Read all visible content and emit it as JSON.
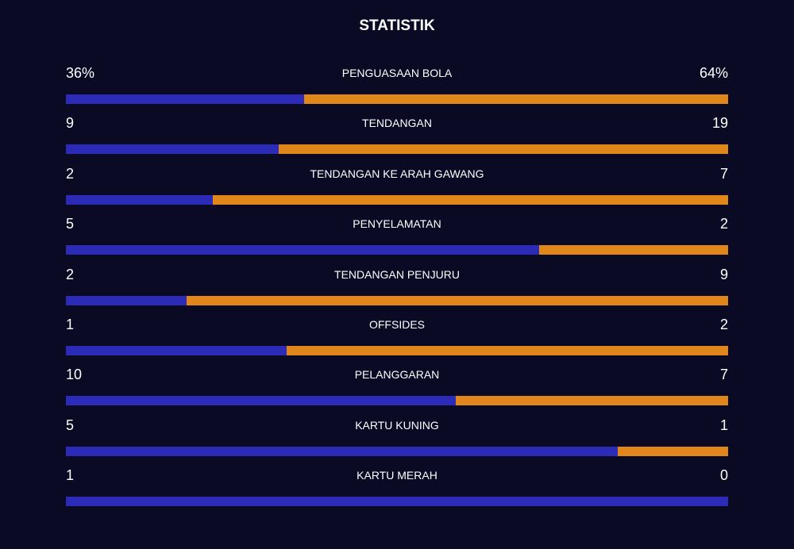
{
  "header": {
    "title": "STATISTIK"
  },
  "colors": {
    "home": "#2b2bb8",
    "away": "#e0861a"
  },
  "stats": [
    {
      "label": "PENGUASAAN BOLA",
      "home": {
        "value": 36,
        "label": "36%"
      },
      "away": {
        "value": 64,
        "label": "64%"
      }
    },
    {
      "label": "TENDANGAN",
      "home": 9,
      "away": 19
    },
    {
      "label": "TENDANGAN KE ARAH GAWANG",
      "home": 2,
      "away": 7
    },
    {
      "label": "PENYELAMATAN",
      "home": 5,
      "away": 2
    },
    {
      "label": "TENDANGAN PENJURU",
      "home": 2,
      "away": 9
    },
    {
      "label": "OFFSIDES",
      "home": 1,
      "away": 2
    },
    {
      "label": "PELANGGARAN",
      "home": 10,
      "away": 7
    },
    {
      "label": "KARTU KUNING",
      "home": 5,
      "away": 1
    },
    {
      "label": "KARTU MERAH",
      "home": 1,
      "away": 0
    }
  ]
}
